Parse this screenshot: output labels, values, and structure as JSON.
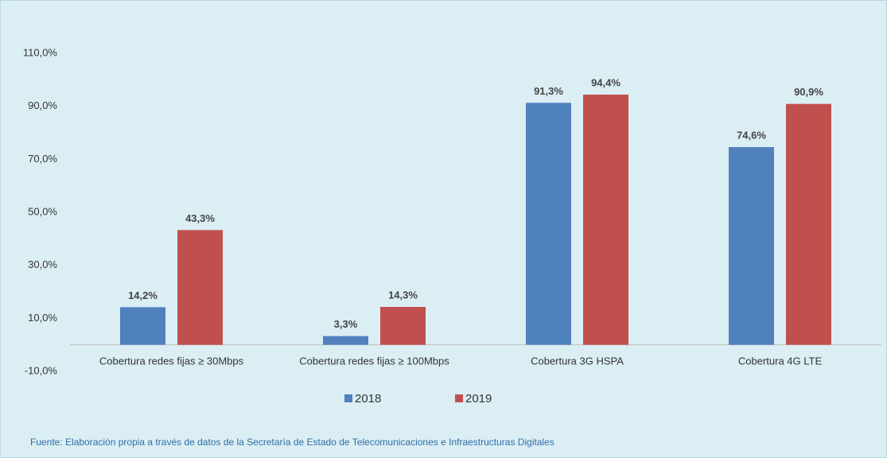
{
  "chart_data": {
    "type": "bar",
    "categories": [
      "Cobertura redes fijas ≥ 30Mbps",
      "Cobertura redes fijas ≥ 100Mbps",
      "Cobertura 3G HSPA",
      "Cobertura 4G LTE"
    ],
    "series": [
      {
        "name": "2018",
        "color": "#4f81bd",
        "values": [
          14.2,
          3.3,
          91.3,
          74.6
        ],
        "value_labels": [
          "14,2%",
          "3,3%",
          "91,3%",
          "74,6%"
        ]
      },
      {
        "name": "2019",
        "color": "#c0504d",
        "values": [
          43.3,
          14.3,
          94.4,
          90.9
        ],
        "value_labels": [
          "43,3%",
          "14,3%",
          "94,4%",
          "90,9%"
        ]
      }
    ],
    "ylim": [
      -10,
      110
    ],
    "yticks": [
      {
        "value": -10,
        "label": "-10,0%"
      },
      {
        "value": 10,
        "label": "10,0%"
      },
      {
        "value": 30,
        "label": "30,0%"
      },
      {
        "value": 50,
        "label": "50,0%"
      },
      {
        "value": 70,
        "label": "70,0%"
      },
      {
        "value": 90,
        "label": "90,0%"
      },
      {
        "value": 110,
        "label": "110,0%"
      }
    ],
    "legend": "bottom",
    "note": "Fuente: Elaboración propia a través de datos de la Secretaría de Estado de Telecomunicaciones e Infraestructuras Digitales"
  }
}
